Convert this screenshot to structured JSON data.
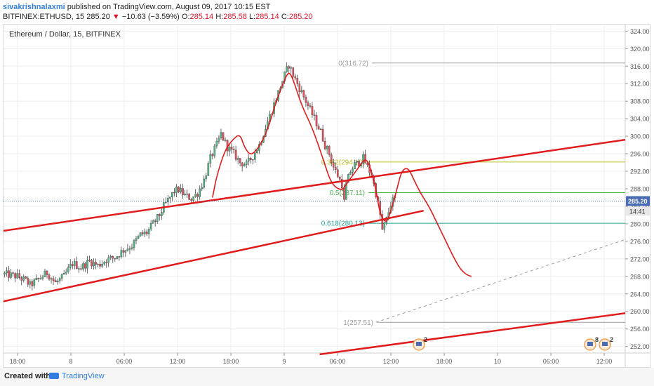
{
  "header": {
    "author": "sivakrishnalaxmi",
    "published_text": " published on TradingView.com, August 09, 2017 10:15 EST",
    "symbol": "BITFINEX:ETHUSD, 15",
    "last": "285.20",
    "change_arrow": "▼",
    "change": "−10.63 (−3.59%)",
    "o_label": "O:",
    "o_value": "285.14",
    "h_label": "H:",
    "h_value": "285.58",
    "l_label": "L:",
    "l_value": "285.14",
    "c_label": "C:",
    "c_value": "285.20"
  },
  "chart_title": "Ethereum / Dollar, 15, BITFINEX",
  "footer": {
    "created_with": "Created with",
    "brand": "TradingView"
  },
  "colors": {
    "up": "#53b987",
    "down": "#eb4d5c",
    "candle_outline": "#444444",
    "annotation": "#e11b1b",
    "fib_382": "#b7c42c",
    "fib_500": "#4caf50",
    "fib_618": "#26a69a",
    "fib_gray": "#9e9e9e",
    "price_tag": "#4a6cb4"
  },
  "chart_data": {
    "type": "candlestick",
    "interval": "15",
    "ylim": [
      250.5,
      325.5
    ],
    "y_ticks": [
      "252.00",
      "256.00",
      "260.00",
      "264.00",
      "268.00",
      "272.00",
      "276.00",
      "280.00",
      "284.00",
      "288.00",
      "292.00",
      "296.00",
      "300.00",
      "304.00",
      "308.00",
      "312.00",
      "316.00",
      "320.00",
      "324.00"
    ],
    "x_ticks": [
      "18:00",
      "8",
      "06:00",
      "12:00",
      "18:00",
      "9",
      "06:00",
      "12:00",
      "18:00",
      "10",
      "06:00",
      "12:00"
    ],
    "last_price": "285.20",
    "countdown": "14:41",
    "fibonacci": [
      {
        "label": "0(316.72)",
        "value": 316.72
      },
      {
        "label": "0.382(294.10)",
        "value": 294.1
      },
      {
        "label": "0.5(287.11)",
        "value": 287.11
      },
      {
        "label": "0.618(280.13)",
        "value": 280.13
      },
      {
        "label": "1(257.51)",
        "value": 257.51
      }
    ],
    "event_badges": [
      "2",
      "8",
      "2"
    ],
    "price_path": [
      [
        0,
        268.5
      ],
      [
        6,
        268
      ],
      [
        10,
        267
      ],
      [
        12,
        266
      ],
      [
        15,
        267
      ],
      [
        20,
        268.8
      ],
      [
        24,
        266.5
      ],
      [
        28,
        268
      ],
      [
        32,
        271
      ],
      [
        36,
        270
      ],
      [
        40,
        271.5
      ],
      [
        44,
        270.5
      ],
      [
        48,
        271.8
      ],
      [
        52,
        272.3
      ],
      [
        56,
        274
      ],
      [
        60,
        275
      ],
      [
        64,
        277.5
      ],
      [
        67,
        278
      ],
      [
        70,
        280
      ],
      [
        73,
        282
      ],
      [
        75,
        284
      ],
      [
        78,
        286
      ],
      [
        80,
        287.5
      ],
      [
        82,
        287.8
      ],
      [
        85,
        286.5
      ],
      [
        88,
        285.8
      ],
      [
        91,
        287
      ],
      [
        94,
        290
      ],
      [
        97,
        295
      ],
      [
        100,
        298
      ],
      [
        102,
        300.5
      ],
      [
        105,
        297.5
      ],
      [
        108,
        296
      ],
      [
        111,
        294
      ],
      [
        114,
        293.5
      ],
      [
        117,
        295.5
      ],
      [
        120,
        298
      ],
      [
        123,
        302
      ],
      [
        126,
        306
      ],
      [
        129,
        310
      ],
      [
        132,
        314
      ],
      [
        134,
        316.3
      ],
      [
        136,
        314
      ],
      [
        139,
        311
      ],
      [
        141,
        309
      ],
      [
        143,
        307
      ],
      [
        145,
        305
      ],
      [
        147,
        303
      ],
      [
        149,
        301
      ],
      [
        151,
        298
      ],
      [
        153,
        296
      ],
      [
        155,
        293
      ],
      [
        157,
        291
      ],
      [
        159,
        289
      ],
      [
        160,
        285
      ],
      [
        161,
        289
      ],
      [
        163,
        292
      ],
      [
        165,
        293.5
      ],
      [
        167,
        294
      ],
      [
        169,
        295
      ],
      [
        171,
        293
      ],
      [
        173,
        291
      ],
      [
        175,
        287
      ],
      [
        177,
        282
      ],
      [
        178,
        278.5
      ],
      [
        180,
        281
      ],
      [
        182,
        284.5
      ],
      [
        184,
        286
      ]
    ],
    "channel_upper": [
      [
        0,
        278.4
      ],
      [
        293,
        299.2
      ]
    ],
    "channel_lower": [
      [
        0,
        262.3
      ],
      [
        198,
        283.0
      ]
    ],
    "channel_lower_extension": [
      [
        149,
        250.2
      ],
      [
        293,
        259.6
      ]
    ],
    "projection_line": [
      [
        175,
        257.5
      ],
      [
        293,
        276.5
      ]
    ],
    "annotation_path": [
      [
        98,
        286
      ],
      [
        100,
        291
      ],
      [
        104,
        297
      ],
      [
        108,
        299.5
      ],
      [
        111,
        300.5
      ],
      [
        113,
        297.5
      ],
      [
        116,
        295.5
      ],
      [
        120,
        297.5
      ],
      [
        124,
        301.5
      ],
      [
        128,
        308
      ],
      [
        132,
        313
      ],
      [
        134,
        314.8
      ],
      [
        136,
        313
      ],
      [
        140,
        307
      ],
      [
        145,
        302
      ],
      [
        150,
        295
      ],
      [
        154,
        289
      ],
      [
        159,
        287.5
      ],
      [
        161,
        289
      ],
      [
        164,
        291
      ],
      [
        167,
        293
      ],
      [
        170,
        295
      ],
      [
        172,
        293.5
      ],
      [
        175,
        288
      ],
      [
        177,
        282
      ],
      [
        180,
        280
      ],
      [
        182,
        283
      ],
      [
        185,
        288
      ],
      [
        187,
        292
      ],
      [
        190,
        293
      ],
      [
        193,
        290
      ],
      [
        196,
        287
      ],
      [
        200,
        284
      ],
      [
        204,
        280
      ],
      [
        208,
        276
      ],
      [
        212,
        272
      ],
      [
        215,
        269.5
      ],
      [
        218,
        268.3
      ],
      [
        220,
        268
      ]
    ]
  }
}
